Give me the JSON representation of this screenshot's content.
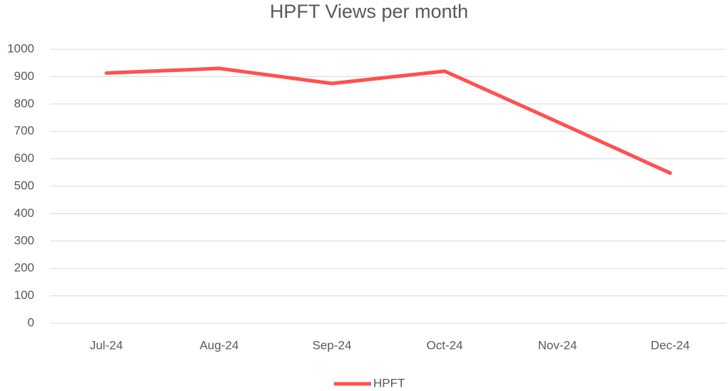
{
  "chart_data": {
    "type": "line",
    "title": "HPFT Views per month",
    "categories": [
      "Jul-24",
      "Aug-24",
      "Sep-24",
      "Oct-24",
      "Nov-24",
      "Dec-24"
    ],
    "series": [
      {
        "name": "HPFT",
        "color": "#ff5050",
        "values": [
          913,
          930,
          875,
          920,
          735,
          548
        ]
      }
    ],
    "ylim": [
      0,
      1000
    ],
    "yticks": [
      0,
      100,
      200,
      300,
      400,
      500,
      600,
      700,
      800,
      900,
      1000
    ],
    "grid": true,
    "legend": "bottom"
  }
}
